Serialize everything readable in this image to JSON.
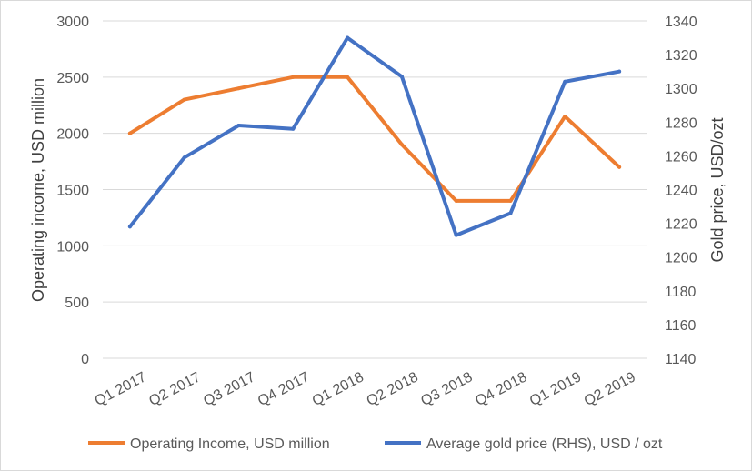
{
  "chart_data": {
    "type": "line",
    "title": "",
    "categories": [
      "Q1 2017",
      "Q2 2017",
      "Q3 2017",
      "Q4 2017",
      "Q1 2018",
      "Q2 2018",
      "Q3 2018",
      "Q4 2018",
      "Q1 2019",
      "Q2 2019"
    ],
    "series": [
      {
        "name": "Operating Income, USD million",
        "axis": "left",
        "color": "#ED7D31",
        "values": [
          2000,
          2300,
          2400,
          2500,
          2500,
          1900,
          1400,
          1400,
          2150,
          1700
        ]
      },
      {
        "name": "Average gold price (RHS), USD / ozt",
        "axis": "right",
        "color": "#4472C4",
        "values": [
          1218,
          1259,
          1278,
          1276,
          1330,
          1307,
          1213,
          1226,
          1304,
          1310
        ]
      }
    ],
    "ylabel": "Operating income, USD million",
    "ylim": [
      0,
      3000
    ],
    "yticks": [
      0,
      500,
      1000,
      1500,
      2000,
      2500,
      3000
    ],
    "y2label": "Gold price, USD/ozt",
    "y2lim": [
      1140,
      1340
    ],
    "y2ticks": [
      1140,
      1160,
      1180,
      1200,
      1220,
      1240,
      1260,
      1280,
      1300,
      1320,
      1340
    ],
    "grid": true,
    "legend_position": "bottom"
  }
}
